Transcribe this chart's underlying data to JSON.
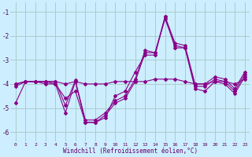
{
  "xlabel": "Windchill (Refroidissement éolien,°C)",
  "background_color": "#cceeff",
  "grid_color": "#aacccc",
  "line_color": "#880088",
  "xlim": [
    -0.5,
    23.5
  ],
  "ylim": [
    -6.4,
    -0.6
  ],
  "yticks": [
    -6,
    -5,
    -4,
    -3,
    -2,
    -1
  ],
  "xticks": [
    0,
    1,
    2,
    3,
    4,
    5,
    6,
    7,
    8,
    9,
    10,
    11,
    12,
    13,
    14,
    15,
    16,
    17,
    18,
    19,
    20,
    21,
    22,
    23
  ],
  "series": [
    [
      -4.8,
      -3.9,
      -3.9,
      -3.9,
      -4.0,
      -4.6,
      -4.3,
      -5.6,
      -5.6,
      -5.4,
      -4.5,
      -4.3,
      -3.5,
      -2.8,
      -2.8,
      -1.2,
      -2.5,
      -2.5,
      -4.2,
      -4.3,
      -3.9,
      -4.0,
      -4.4,
      -3.7
    ],
    [
      -4.0,
      -3.9,
      -3.9,
      -3.9,
      -3.9,
      -4.0,
      -3.9,
      -4.0,
      -4.0,
      -4.0,
      -3.9,
      -3.9,
      -3.9,
      -3.9,
      -3.8,
      -3.8,
      -3.8,
      -3.9,
      -4.0,
      -4.0,
      -3.9,
      -3.9,
      -4.0,
      -3.8
    ],
    [
      -4.1,
      -3.9,
      -3.9,
      -4.0,
      -4.0,
      -5.2,
      -3.9,
      -5.6,
      -5.6,
      -5.3,
      -4.8,
      -4.6,
      -3.9,
      -2.7,
      -2.7,
      -1.3,
      -2.4,
      -2.5,
      -4.1,
      -4.1,
      -3.8,
      -3.9,
      -4.3,
      -3.6
    ],
    [
      -4.0,
      -3.9,
      -3.9,
      -3.9,
      -3.9,
      -4.9,
      -3.85,
      -5.5,
      -5.5,
      -5.2,
      -4.7,
      -4.5,
      -3.8,
      -2.6,
      -2.7,
      -1.2,
      -2.3,
      -2.4,
      -4.0,
      -4.0,
      -3.7,
      -3.8,
      -4.2,
      -3.5
    ]
  ]
}
